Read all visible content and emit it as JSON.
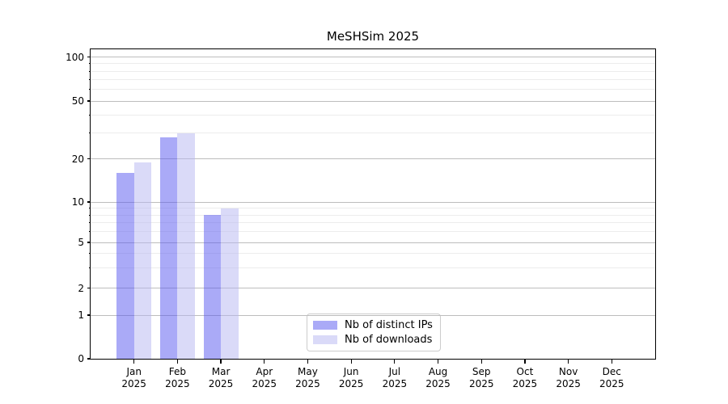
{
  "chart_data": {
    "type": "bar",
    "title": "MeSHSim 2025",
    "year": "2025",
    "categories": [
      "Jan",
      "Feb",
      "Mar",
      "Apr",
      "May",
      "Jun",
      "Jul",
      "Aug",
      "Sep",
      "Oct",
      "Nov",
      "Dec"
    ],
    "series": [
      {
        "name": "Nb of distinct IPs",
        "color": "#5555f0",
        "values": [
          16,
          28,
          8,
          0,
          0,
          0,
          0,
          0,
          0,
          0,
          0,
          0
        ]
      },
      {
        "name": "Nb of downloads",
        "color": "#b5b5f1",
        "values": [
          19,
          30,
          9,
          0,
          0,
          0,
          0,
          0,
          0,
          0,
          0,
          0
        ]
      }
    ],
    "y_axis": {
      "scale": "symlog",
      "major_ticks": [
        100,
        50,
        20,
        10,
        5,
        2,
        1,
        0
      ],
      "minor_ticks": [
        90,
        80,
        70,
        60,
        40,
        30,
        9,
        8,
        7,
        6,
        4,
        3
      ],
      "ylim": [
        0,
        113
      ]
    },
    "x_axis": {
      "tick_label_format": "month-over-year"
    },
    "legend": {
      "position": "lower center"
    },
    "grid": {
      "major_color": "#bdbdbd",
      "minor_color": "#ececec"
    }
  }
}
